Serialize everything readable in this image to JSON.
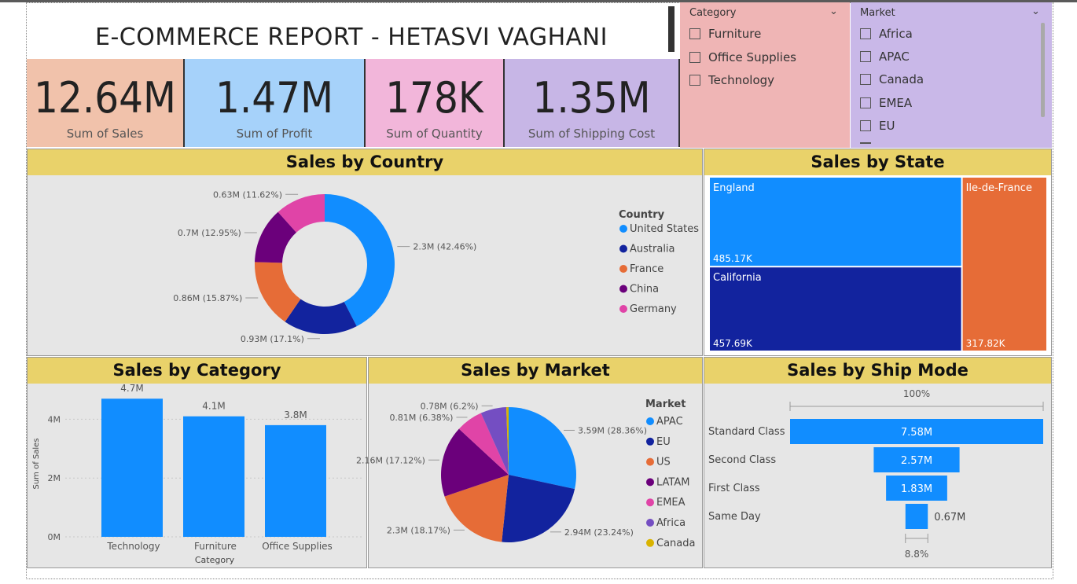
{
  "report": {
    "title": "E-COMMERCE REPORT  - HETASVI VAGHANI"
  },
  "kpis": [
    {
      "value": "12.64M",
      "label": "Sum of Sales",
      "color": "#f1c2ab"
    },
    {
      "value": "1.47M",
      "label": "Sum of Profit",
      "color": "#a6d2fa"
    },
    {
      "value": "178K",
      "label": "Sum of Quantity",
      "color": "#f2b6da"
    },
    {
      "value": "1.35M",
      "label": "Sum of Shipping Cost",
      "color": "#c7b6e6"
    }
  ],
  "slicers": {
    "category": {
      "title": "Category",
      "items": [
        "Furniture",
        "Office Supplies",
        "Technology"
      ],
      "color": "#efb5b5"
    },
    "market": {
      "title": "Market",
      "items": [
        "Africa",
        "APAC",
        "Canada",
        "EMEA",
        "EU"
      ],
      "color": "#c9b8e8"
    }
  },
  "colors": {
    "blue": "#118dff",
    "navy": "#12239e",
    "orange": "#e66c37",
    "purple": "#6b007b",
    "pink": "#e044a7",
    "violet": "#744ec2",
    "gold": "#d9b300",
    "header": "#e9d26a",
    "panel": "#e6e6e6"
  },
  "chart_data": [
    {
      "type": "pie",
      "variant": "donut",
      "title": "Sales by Country",
      "legend_title": "Country",
      "legend_position": "right",
      "labels": [
        "United States",
        "Australia",
        "France",
        "China",
        "Germany"
      ],
      "values": [
        2.3,
        0.93,
        0.86,
        0.7,
        0.63
      ],
      "percents": [
        42.46,
        17.1,
        15.87,
        12.95,
        11.62
      ],
      "data_labels": [
        "2.3M (42.46%)",
        "0.93M (17.1%)",
        "0.86M (15.87%)",
        "0.7M (12.95%)",
        "0.63M (11.62%)"
      ]
    },
    {
      "type": "treemap",
      "title": "Sales by State",
      "labels": [
        "England",
        "California",
        "Ile-de-France"
      ],
      "values": [
        485.17,
        457.69,
        317.82
      ],
      "value_labels": [
        "485.17K",
        "457.69K",
        "317.82K"
      ],
      "unit": "K"
    },
    {
      "type": "bar",
      "title": "Sales by Category",
      "categories": [
        "Technology",
        "Furniture",
        "Office Supplies"
      ],
      "values": [
        4.7,
        4.1,
        3.8
      ],
      "data_labels": [
        "4.7M",
        "4.1M",
        "3.8M"
      ],
      "xlabel": "Category",
      "ylabel": "Sum of Sales",
      "ylim": [
        0,
        5
      ],
      "yticks": [
        0,
        2,
        4
      ],
      "ytick_labels": [
        "0M",
        "2M",
        "4M"
      ],
      "grid": true
    },
    {
      "type": "pie",
      "title": "Sales by Market",
      "legend_title": "Market",
      "legend_position": "right",
      "labels": [
        "APAC",
        "EU",
        "US",
        "LATAM",
        "EMEA",
        "Africa",
        "Canada"
      ],
      "values": [
        3.59,
        2.94,
        2.3,
        2.16,
        0.81,
        0.78,
        0.07
      ],
      "percents": [
        28.36,
        23.24,
        18.17,
        17.12,
        6.38,
        6.2,
        0.53
      ],
      "data_labels": [
        "3.59M (28.36%)",
        "2.94M (23.24%)",
        "2.3M (18.17%)",
        "2.16M (17.12%)",
        "0.81M (6.38%)",
        "0.78M (6.2%)",
        ""
      ]
    },
    {
      "type": "funnel",
      "title": "Sales by Ship Mode",
      "categories": [
        "Standard Class",
        "Second Class",
        "First Class",
        "Same Day"
      ],
      "values": [
        7.58,
        2.57,
        1.83,
        0.67
      ],
      "data_labels": [
        "7.58M",
        "2.57M",
        "1.83M",
        "0.67M"
      ],
      "top_percent_label": "100%",
      "bottom_percent_label": "8.8%"
    }
  ]
}
